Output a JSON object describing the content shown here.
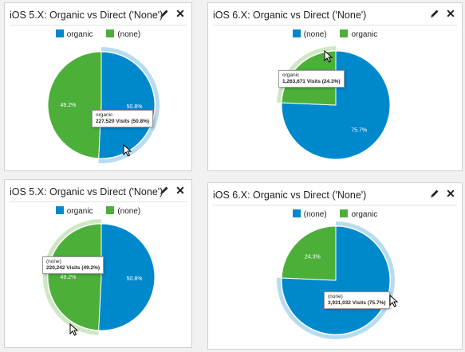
{
  "colors": {
    "organic": "#4caf39",
    "none": "#0088cc",
    "highlight": "#b7dcef",
    "highlight_green": "#cfe7c4"
  },
  "icons": {
    "edit": "pencil-icon",
    "close": "close-icon"
  },
  "widgets": [
    {
      "id": "tl",
      "title": "iOS 5.X: Organic vs Direct ('None')",
      "legend": [
        {
          "label": "organic",
          "key": "organic"
        },
        {
          "label": "(none)",
          "key": "none"
        }
      ],
      "tooltip": {
        "label": "organic",
        "value": "227,520 Visits (50.8%)"
      },
      "pct_labels": {
        "organic": "50.8%",
        "none": "49.2%"
      }
    },
    {
      "id": "tr",
      "title": "iOS 6.X: Organic vs Direct ('None')",
      "legend": [
        {
          "label": "(none)",
          "key": "none"
        },
        {
          "label": "organic",
          "key": "organic"
        }
      ],
      "tooltip": {
        "label": "organic",
        "value": "1,263,671 Visits (24.3%)"
      },
      "pct_labels": {
        "none": "75.7%",
        "organic": ""
      }
    },
    {
      "id": "bl",
      "title": "iOS 5.X: Organic vs Direct ('None')",
      "legend": [
        {
          "label": "organic",
          "key": "organic"
        },
        {
          "label": "(none)",
          "key": "none"
        }
      ],
      "tooltip": {
        "label": "(none)",
        "value": "220,242 Visits (49.2%)"
      },
      "pct_labels": {
        "organic": "50.8%",
        "none": "49.2%"
      }
    },
    {
      "id": "br",
      "title": "iOS 6.X: Organic vs Direct ('None')",
      "legend": [
        {
          "label": "(none)",
          "key": "none"
        },
        {
          "label": "organic",
          "key": "organic"
        }
      ],
      "tooltip": {
        "label": "(none)",
        "value": "3,931,032 Visits (75.7%)"
      },
      "pct_labels": {
        "organic": "24.3%",
        "none": "75.7%"
      }
    }
  ],
  "chart_data": [
    {
      "type": "pie",
      "title": "iOS 5.X: Organic vs Direct ('None')",
      "slices": [
        {
          "name": "organic",
          "value": 50.8,
          "visits": 227520
        },
        {
          "name": "(none)",
          "value": 49.2
        }
      ],
      "highlighted": "organic"
    },
    {
      "type": "pie",
      "title": "iOS 6.X: Organic vs Direct ('None')",
      "slices": [
        {
          "name": "(none)",
          "value": 75.7
        },
        {
          "name": "organic",
          "value": 24.3,
          "visits": 1263671
        }
      ],
      "highlighted": "organic"
    },
    {
      "type": "pie",
      "title": "iOS 5.X: Organic vs Direct ('None')",
      "slices": [
        {
          "name": "organic",
          "value": 50.8
        },
        {
          "name": "(none)",
          "value": 49.2,
          "visits": 220242
        }
      ],
      "highlighted": "(none)"
    },
    {
      "type": "pie",
      "title": "iOS 6.X: Organic vs Direct ('None')",
      "slices": [
        {
          "name": "(none)",
          "value": 75.7,
          "visits": 3931032
        },
        {
          "name": "organic",
          "value": 24.3
        }
      ],
      "highlighted": "(none)"
    }
  ]
}
